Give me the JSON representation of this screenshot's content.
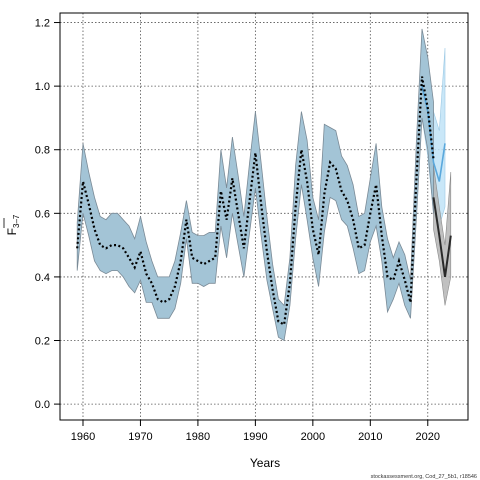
{
  "chart_data": {
    "type": "line",
    "title": "",
    "xlabel": "Years",
    "ylabel_main": "F",
    "ylabel_sub": "3–7",
    "xlim": [
      1956,
      2027
    ],
    "ylim": [
      -0.05,
      1.23
    ],
    "xticks": [
      1960,
      1970,
      1980,
      1990,
      2000,
      2010,
      2020
    ],
    "yticks": [
      0.0,
      0.2,
      0.4,
      0.6,
      0.8,
      1.0,
      1.2
    ],
    "ytick_labels": [
      "0.0",
      "0.2",
      "0.4",
      "0.6",
      "0.8",
      "1.0",
      "1.2"
    ],
    "grid": true,
    "footer": "stockassessment.org, Cod_27_5b1, r18546",
    "colors": {
      "band_main": "#a3c4d6",
      "band_main_edge": "#7a8a96",
      "band_light": "#bfe3f7",
      "band_grey": "#b5b5b5",
      "estimate_line": "#000000",
      "light_line": "#5aa8dc",
      "forecast_line": "#2a2a2a"
    },
    "series": [
      {
        "role": "estimate",
        "x": [
          1959,
          1960,
          1961,
          1962,
          1963,
          1964,
          1965,
          1966,
          1967,
          1968,
          1969,
          1970,
          1971,
          1972,
          1973,
          1974,
          1975,
          1976,
          1977,
          1978,
          1979,
          1980,
          1981,
          1982,
          1983,
          1984,
          1985,
          1986,
          1987,
          1988,
          1989,
          1990,
          1991,
          1992,
          1993,
          1994,
          1995,
          1996,
          1997,
          1998,
          1999,
          2000,
          2001,
          2002,
          2003,
          2004,
          2005,
          2006,
          2007,
          2008,
          2009,
          2010,
          2011,
          2012,
          2013,
          2014,
          2015,
          2016,
          2017,
          2018,
          2019,
          2020,
          2021
        ],
        "y": [
          0.49,
          0.7,
          0.63,
          0.55,
          0.5,
          0.49,
          0.5,
          0.5,
          0.49,
          0.46,
          0.43,
          0.48,
          0.41,
          0.38,
          0.33,
          0.32,
          0.33,
          0.37,
          0.45,
          0.58,
          0.46,
          0.45,
          0.44,
          0.45,
          0.46,
          0.67,
          0.58,
          0.71,
          0.6,
          0.49,
          0.64,
          0.79,
          0.63,
          0.48,
          0.36,
          0.26,
          0.25,
          0.38,
          0.62,
          0.8,
          0.7,
          0.55,
          0.47,
          0.66,
          0.76,
          0.74,
          0.67,
          0.64,
          0.58,
          0.49,
          0.5,
          0.6,
          0.69,
          0.53,
          0.4,
          0.39,
          0.45,
          0.39,
          0.32,
          0.7,
          1.03,
          0.93,
          0.77
        ],
        "lower": [
          0.42,
          0.6,
          0.53,
          0.45,
          0.42,
          0.41,
          0.42,
          0.42,
          0.4,
          0.37,
          0.35,
          0.39,
          0.32,
          0.32,
          0.27,
          0.27,
          0.27,
          0.3,
          0.38,
          0.52,
          0.38,
          0.38,
          0.37,
          0.38,
          0.38,
          0.56,
          0.46,
          0.6,
          0.5,
          0.4,
          0.54,
          0.68,
          0.53,
          0.39,
          0.3,
          0.21,
          0.2,
          0.31,
          0.52,
          0.69,
          0.58,
          0.46,
          0.37,
          0.54,
          0.65,
          0.64,
          0.58,
          0.56,
          0.49,
          0.41,
          0.42,
          0.51,
          0.56,
          0.45,
          0.29,
          0.33,
          0.38,
          0.31,
          0.27,
          0.58,
          0.9,
          0.8,
          0.6
        ],
        "upper": [
          0.57,
          0.82,
          0.73,
          0.65,
          0.59,
          0.58,
          0.6,
          0.6,
          0.58,
          0.56,
          0.52,
          0.59,
          0.51,
          0.45,
          0.4,
          0.4,
          0.4,
          0.45,
          0.54,
          0.64,
          0.54,
          0.53,
          0.53,
          0.54,
          0.54,
          0.8,
          0.68,
          0.84,
          0.72,
          0.59,
          0.76,
          0.92,
          0.76,
          0.59,
          0.44,
          0.33,
          0.31,
          0.46,
          0.75,
          0.92,
          0.83,
          0.65,
          0.58,
          0.88,
          0.87,
          0.86,
          0.78,
          0.75,
          0.69,
          0.59,
          0.6,
          0.71,
          0.82,
          0.62,
          0.52,
          0.46,
          0.51,
          0.47,
          0.39,
          0.82,
          1.18,
          1.09,
          0.95
        ]
      },
      {
        "role": "alternative",
        "x": [
          2019,
          2020,
          2021,
          2022,
          2023
        ],
        "y": [
          1.0,
          0.92,
          0.76,
          0.7,
          0.82
        ],
        "lower": [
          0.9,
          0.78,
          0.6,
          0.56,
          0.62
        ],
        "upper": [
          1.12,
          1.06,
          0.92,
          0.86,
          1.12
        ]
      },
      {
        "role": "forecast",
        "x": [
          2021,
          2022,
          2023,
          2024
        ],
        "y": [
          0.65,
          0.53,
          0.4,
          0.53
        ],
        "lower": [
          0.55,
          0.45,
          0.31,
          0.4
        ],
        "upper": [
          0.75,
          0.62,
          0.5,
          0.73
        ]
      }
    ]
  }
}
